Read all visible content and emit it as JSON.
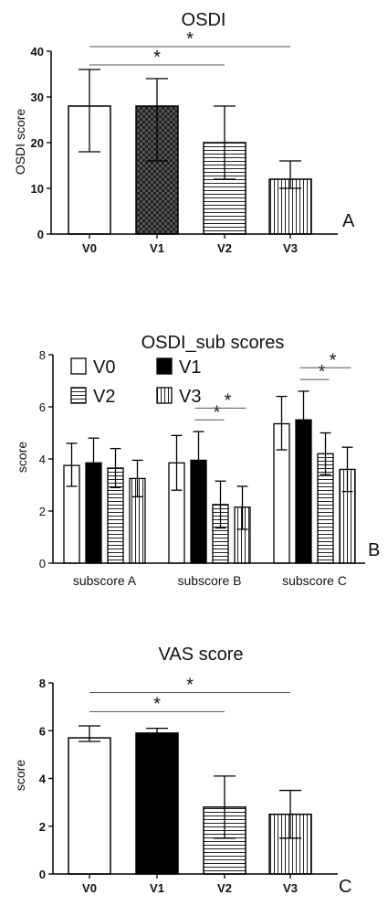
{
  "chart_data": [
    {
      "type": "bar",
      "panel": "A",
      "title": "OSDI",
      "ylabel": "OSDI score",
      "xlabel": "",
      "ylim": [
        0,
        40
      ],
      "yticks": [
        0,
        10,
        20,
        30,
        40
      ],
      "categories": [
        "V0",
        "V1",
        "V2",
        "V3"
      ],
      "series": [
        {
          "values": [
            28,
            28,
            20,
            12
          ],
          "error": [
            [
              18,
              36
            ],
            [
              16,
              34
            ],
            [
              12,
              28
            ],
            [
              10,
              16
            ]
          ],
          "fills": [
            "white",
            "checker",
            "hstripe",
            "vstripe"
          ]
        }
      ],
      "significance": [
        {
          "from": "V0",
          "to": "V2",
          "label": "*",
          "y": 37
        },
        {
          "from": "V0",
          "to": "V3",
          "label": "*",
          "y": 41
        }
      ],
      "grid": false
    },
    {
      "type": "bar",
      "panel": "B",
      "title": "OSDI_sub scores",
      "ylabel": "score",
      "xlabel": "",
      "ylim": [
        0,
        8
      ],
      "yticks": [
        0,
        2,
        4,
        6,
        8
      ],
      "categories": [
        "subscore A",
        "subscore B",
        "subscore C"
      ],
      "series": [
        {
          "name": "V0",
          "fill": "white",
          "values": [
            3.75,
            3.85,
            5.35
          ],
          "error": [
            [
              2.95,
              4.6
            ],
            [
              2.8,
              4.9
            ],
            [
              4.35,
              6.4
            ]
          ]
        },
        {
          "name": "V1",
          "fill": "black",
          "values": [
            3.85,
            3.95,
            5.5
          ],
          "error": [
            [
              2.9,
              4.8
            ],
            [
              2.9,
              5.05
            ],
            [
              4.4,
              6.6
            ]
          ]
        },
        {
          "name": "V2",
          "fill": "hstripe",
          "values": [
            3.65,
            2.25,
            4.2
          ],
          "error": [
            [
              2.9,
              4.4
            ],
            [
              1.35,
              3.15
            ],
            [
              3.4,
              5.0
            ]
          ]
        },
        {
          "name": "V3",
          "fill": "vstripe",
          "values": [
            3.25,
            2.15,
            3.6
          ],
          "error": [
            [
              2.55,
              3.95
            ],
            [
              1.3,
              2.95
            ],
            [
              2.75,
              4.45
            ]
          ]
        }
      ],
      "significance": [
        {
          "group": "subscore B",
          "from": "V1",
          "to": "V2",
          "label": "*",
          "y": 5.5
        },
        {
          "group": "subscore B",
          "from": "V1",
          "to": "V3",
          "label": "*",
          "y": 5.95
        },
        {
          "group": "subscore C",
          "from": "V1",
          "to": "V2",
          "label": "*",
          "y": 7.05
        },
        {
          "group": "subscore C",
          "from": "V1",
          "to": "V3",
          "label": "*",
          "y": 7.5
        }
      ],
      "legend": "top-left",
      "grid": false
    },
    {
      "type": "bar",
      "panel": "C",
      "title": "VAS score",
      "ylabel": "score",
      "xlabel": "",
      "ylim": [
        0,
        8
      ],
      "yticks": [
        0,
        2,
        4,
        6,
        8
      ],
      "categories": [
        "V0",
        "V1",
        "V2",
        "V3"
      ],
      "series": [
        {
          "values": [
            5.7,
            5.9,
            2.8,
            2.5
          ],
          "error": [
            [
              5.55,
              6.2
            ],
            [
              5.75,
              6.1
            ],
            [
              1.5,
              4.1
            ],
            [
              1.5,
              3.5
            ]
          ],
          "fills": [
            "white",
            "black",
            "hstripe",
            "vstripe"
          ]
        }
      ],
      "significance": [
        {
          "from": "V0",
          "to": "V2",
          "label": "*",
          "y": 6.8
        },
        {
          "from": "V0",
          "to": "V3",
          "label": "*",
          "y": 7.6
        }
      ],
      "grid": false
    }
  ]
}
